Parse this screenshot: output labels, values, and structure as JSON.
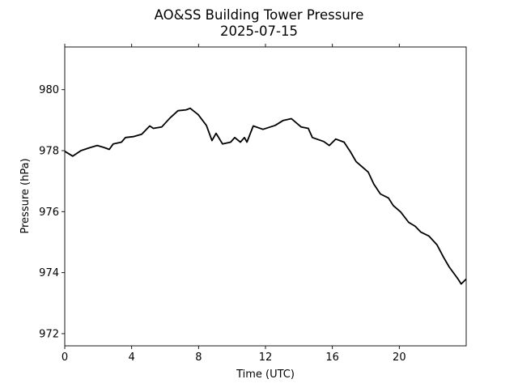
{
  "chart_data": {
    "type": "line",
    "title": "AO&SS Building Tower Pressure",
    "subtitle": "2025-07-15",
    "xlabel": "Time (UTC)",
    "ylabel": "Pressure (hPa)",
    "xlim": [
      0,
      24
    ],
    "ylim": [
      971.6,
      981.4
    ],
    "xticks": [
      0,
      4,
      8,
      12,
      16,
      20
    ],
    "yticks": [
      972,
      974,
      976,
      978,
      980
    ],
    "grid": false,
    "line_color": "#000000",
    "series": [
      {
        "name": "Pressure",
        "x": [
          0,
          0.48,
          0.97,
          1.45,
          1.94,
          2.42,
          2.66,
          2.9,
          3.39,
          3.63,
          4.1,
          4.6,
          5.08,
          5.3,
          5.8,
          6.29,
          6.77,
          7.26,
          7.5,
          7.98,
          8.47,
          8.8,
          9.05,
          9.43,
          9.92,
          10.16,
          10.5,
          10.74,
          10.89,
          11.27,
          11.85,
          12.58,
          13.06,
          13.55,
          14.13,
          14.56,
          14.8,
          15.48,
          15.82,
          16.2,
          16.7,
          17.08,
          17.42,
          18.14,
          18.48,
          18.87,
          19.35,
          19.64,
          20.08,
          20.56,
          20.95,
          21.29,
          21.77,
          22.26,
          22.64,
          22.98,
          23.51,
          23.7,
          24.0
        ],
        "y": [
          977.98,
          977.82,
          978.0,
          978.09,
          978.17,
          978.09,
          978.04,
          978.22,
          978.28,
          978.43,
          978.46,
          978.54,
          978.81,
          978.73,
          978.78,
          979.07,
          979.31,
          979.34,
          979.39,
          979.18,
          978.83,
          978.33,
          978.57,
          978.22,
          978.28,
          978.43,
          978.28,
          978.43,
          978.28,
          978.81,
          978.7,
          978.83,
          978.99,
          979.05,
          978.78,
          978.73,
          978.43,
          978.3,
          978.17,
          978.38,
          978.28,
          977.96,
          977.64,
          977.3,
          976.9,
          976.58,
          976.45,
          976.2,
          975.99,
          975.65,
          975.52,
          975.33,
          975.2,
          974.91,
          974.51,
          974.19,
          973.79,
          973.63,
          973.79
        ]
      }
    ]
  }
}
